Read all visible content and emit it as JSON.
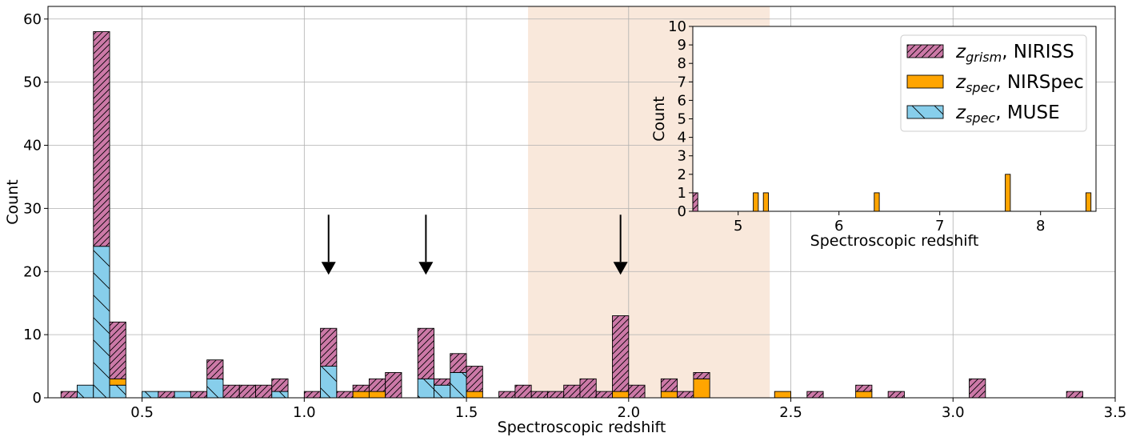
{
  "chart_data": [
    {
      "type": "bar",
      "stacked": true,
      "xlabel": "Spectroscopic redshift",
      "ylabel": "Count",
      "xlim": [
        0.21,
        3.5
      ],
      "ylim": [
        0,
        62
      ],
      "bin_width": 0.05,
      "xticks": [
        0.5,
        1.0,
        1.5,
        2.0,
        2.5,
        3.0,
        3.5
      ],
      "xtick_labels": [
        "0.5",
        "1.0",
        "1.5",
        "2.0",
        "2.5",
        "3.0",
        "3.5"
      ],
      "yticks": [
        0,
        10,
        20,
        30,
        40,
        50,
        60
      ],
      "ytick_labels": [
        "0",
        "10",
        "20",
        "30",
        "40",
        "50",
        "60"
      ],
      "grid": true,
      "highlight_band": {
        "x": [
          1.69,
          2.435
        ],
        "color": "#f9e8db"
      },
      "arrows": [
        {
          "x": 1.075,
          "y_from": 29,
          "y_to": 19.5
        },
        {
          "x": 1.375,
          "y_from": 29,
          "y_to": 19.5
        },
        {
          "x": 1.975,
          "y_from": 29,
          "y_to": 19.5
        }
      ],
      "bins": [
        0.25,
        0.3,
        0.35,
        0.4,
        0.5,
        0.55,
        0.6,
        0.65,
        0.7,
        0.75,
        0.8,
        0.85,
        0.9,
        1.0,
        1.05,
        1.1,
        1.15,
        1.2,
        1.25,
        1.35,
        1.4,
        1.45,
        1.5,
        1.6,
        1.65,
        1.7,
        1.75,
        1.8,
        1.85,
        1.9,
        1.95,
        2.0,
        2.1,
        2.15,
        2.2,
        2.45,
        2.55,
        2.7,
        2.8,
        3.05,
        3.35
      ],
      "series": [
        {
          "name": "z_spec, MUSE",
          "color": "#87ceeb",
          "hatch": "backslash",
          "values": [
            0,
            2,
            24,
            2,
            1,
            0,
            1,
            0,
            3,
            0,
            0,
            0,
            1,
            0,
            5,
            0,
            0,
            0,
            0,
            3,
            2,
            4,
            0,
            0,
            0,
            0,
            0,
            0,
            0,
            0,
            0,
            0,
            0,
            0,
            0,
            0,
            0,
            0,
            0,
            0,
            0
          ]
        },
        {
          "name": "z_spec, NIRSpec",
          "color": "#ffa500",
          "hatch": "none",
          "values": [
            0,
            0,
            0,
            1,
            0,
            0,
            0,
            0,
            0,
            0,
            0,
            0,
            0,
            0,
            0,
            0,
            1,
            1,
            0,
            0,
            0,
            0,
            1,
            0,
            0,
            0,
            0,
            0,
            0,
            0,
            1,
            0,
            1,
            0,
            3,
            1,
            0,
            1,
            0,
            0,
            0
          ]
        },
        {
          "name": "z_grism, NIRISS",
          "color": "#cc79a7",
          "hatch": "forward",
          "values": [
            1,
            0,
            34,
            9,
            0,
            1,
            0,
            1,
            3,
            2,
            2,
            2,
            2,
            1,
            6,
            1,
            1,
            2,
            4,
            8,
            1,
            3,
            4,
            1,
            2,
            1,
            1,
            2,
            3,
            1,
            12,
            2,
            2,
            1,
            1,
            0,
            1,
            1,
            1,
            3,
            1
          ]
        }
      ]
    },
    {
      "type": "bar",
      "stacked": true,
      "inset": true,
      "xlabel": "Spectroscopic redshift",
      "ylabel": "Count",
      "xlim": [
        4.55,
        8.55
      ],
      "ylim": [
        0,
        10
      ],
      "bin_width": 0.05,
      "xticks": [
        5,
        6,
        7,
        8
      ],
      "xtick_labels": [
        "5",
        "6",
        "7",
        "8"
      ],
      "yticks": [
        0,
        1,
        2,
        3,
        4,
        5,
        6,
        7,
        8,
        9,
        10
      ],
      "ytick_labels": [
        "0",
        "1",
        "2",
        "3",
        "4",
        "5",
        "6",
        "7",
        "8",
        "9",
        "10"
      ],
      "grid": false,
      "legend": {
        "position": "upper right",
        "entries": [
          {
            "series": "z_grism, NIRISS",
            "sub": "grism",
            "rest": ", NIRISS"
          },
          {
            "series": "z_spec, NIRSpec",
            "sub": "spec",
            "rest": ", NIRSpec"
          },
          {
            "series": "z_spec, MUSE",
            "sub": "spec",
            "rest": ", MUSE"
          }
        ]
      },
      "bins": [
        4.55,
        5.15,
        5.25,
        6.35,
        7.65,
        8.45
      ],
      "series": [
        {
          "name": "z_spec, MUSE",
          "color": "#87ceeb",
          "hatch": "backslash",
          "values": [
            0,
            0,
            0,
            0,
            0,
            0
          ]
        },
        {
          "name": "z_spec, NIRSpec",
          "color": "#ffa500",
          "hatch": "none",
          "values": [
            0,
            1,
            1,
            1,
            2,
            1
          ]
        },
        {
          "name": "z_grism, NIRISS",
          "color": "#cc79a7",
          "hatch": "forward",
          "values": [
            1,
            0,
            0,
            0,
            0,
            0
          ]
        }
      ]
    }
  ]
}
